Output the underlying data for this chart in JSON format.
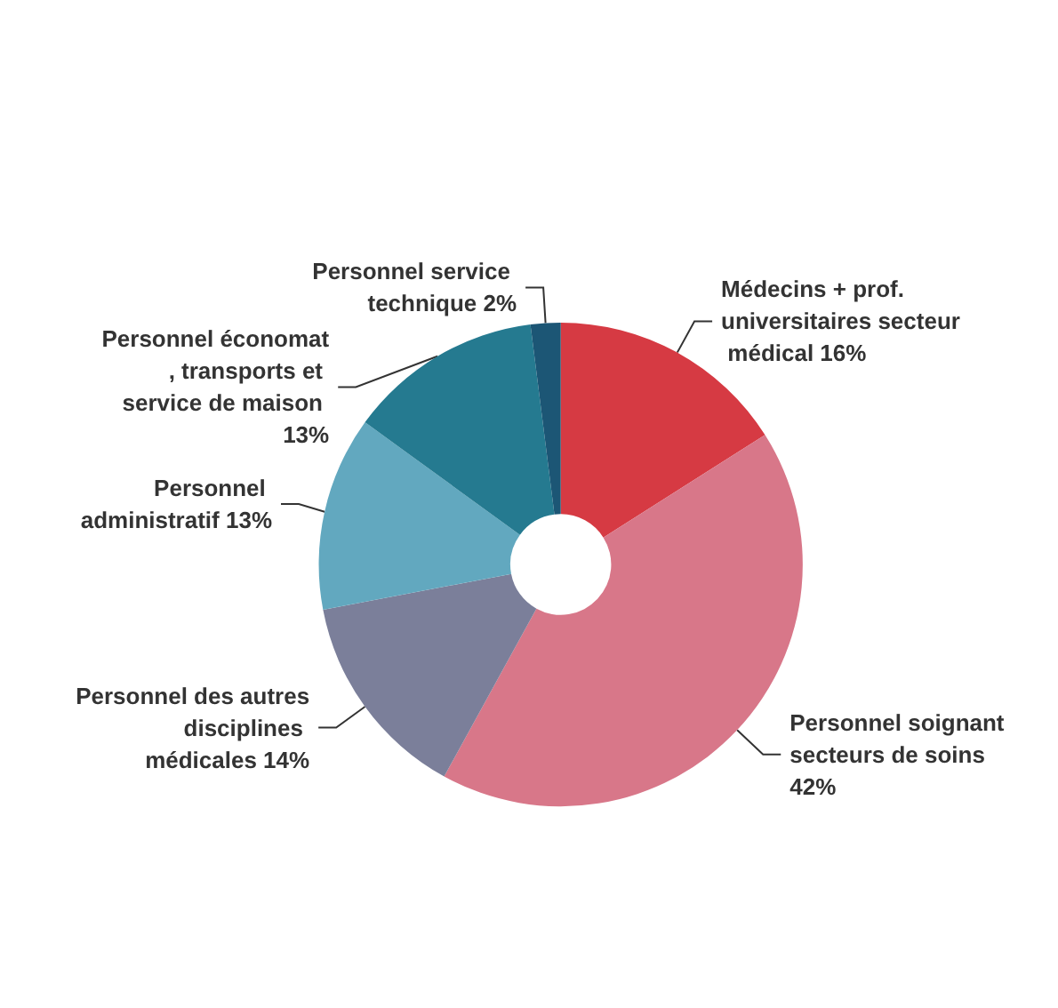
{
  "chart_data": {
    "type": "donut",
    "categories": [
      "Médecins + prof. universitaires secteur médical",
      "Personnel soignant secteurs de soins",
      "Personnel des autres disciplines médicales",
      "Personnel administratif",
      "Personnel économat, transports et service de maison",
      "Personnel service technique"
    ],
    "values": [
      16,
      42,
      14,
      13,
      13,
      2
    ],
    "value_labels": [
      "16%",
      "42%",
      "14%",
      "13%",
      "13%",
      "2%"
    ],
    "colors": [
      "#d63a43",
      "#d87789",
      "#7b7f9a",
      "#62a8bf",
      "#257a90",
      "#1c5675"
    ]
  }
}
